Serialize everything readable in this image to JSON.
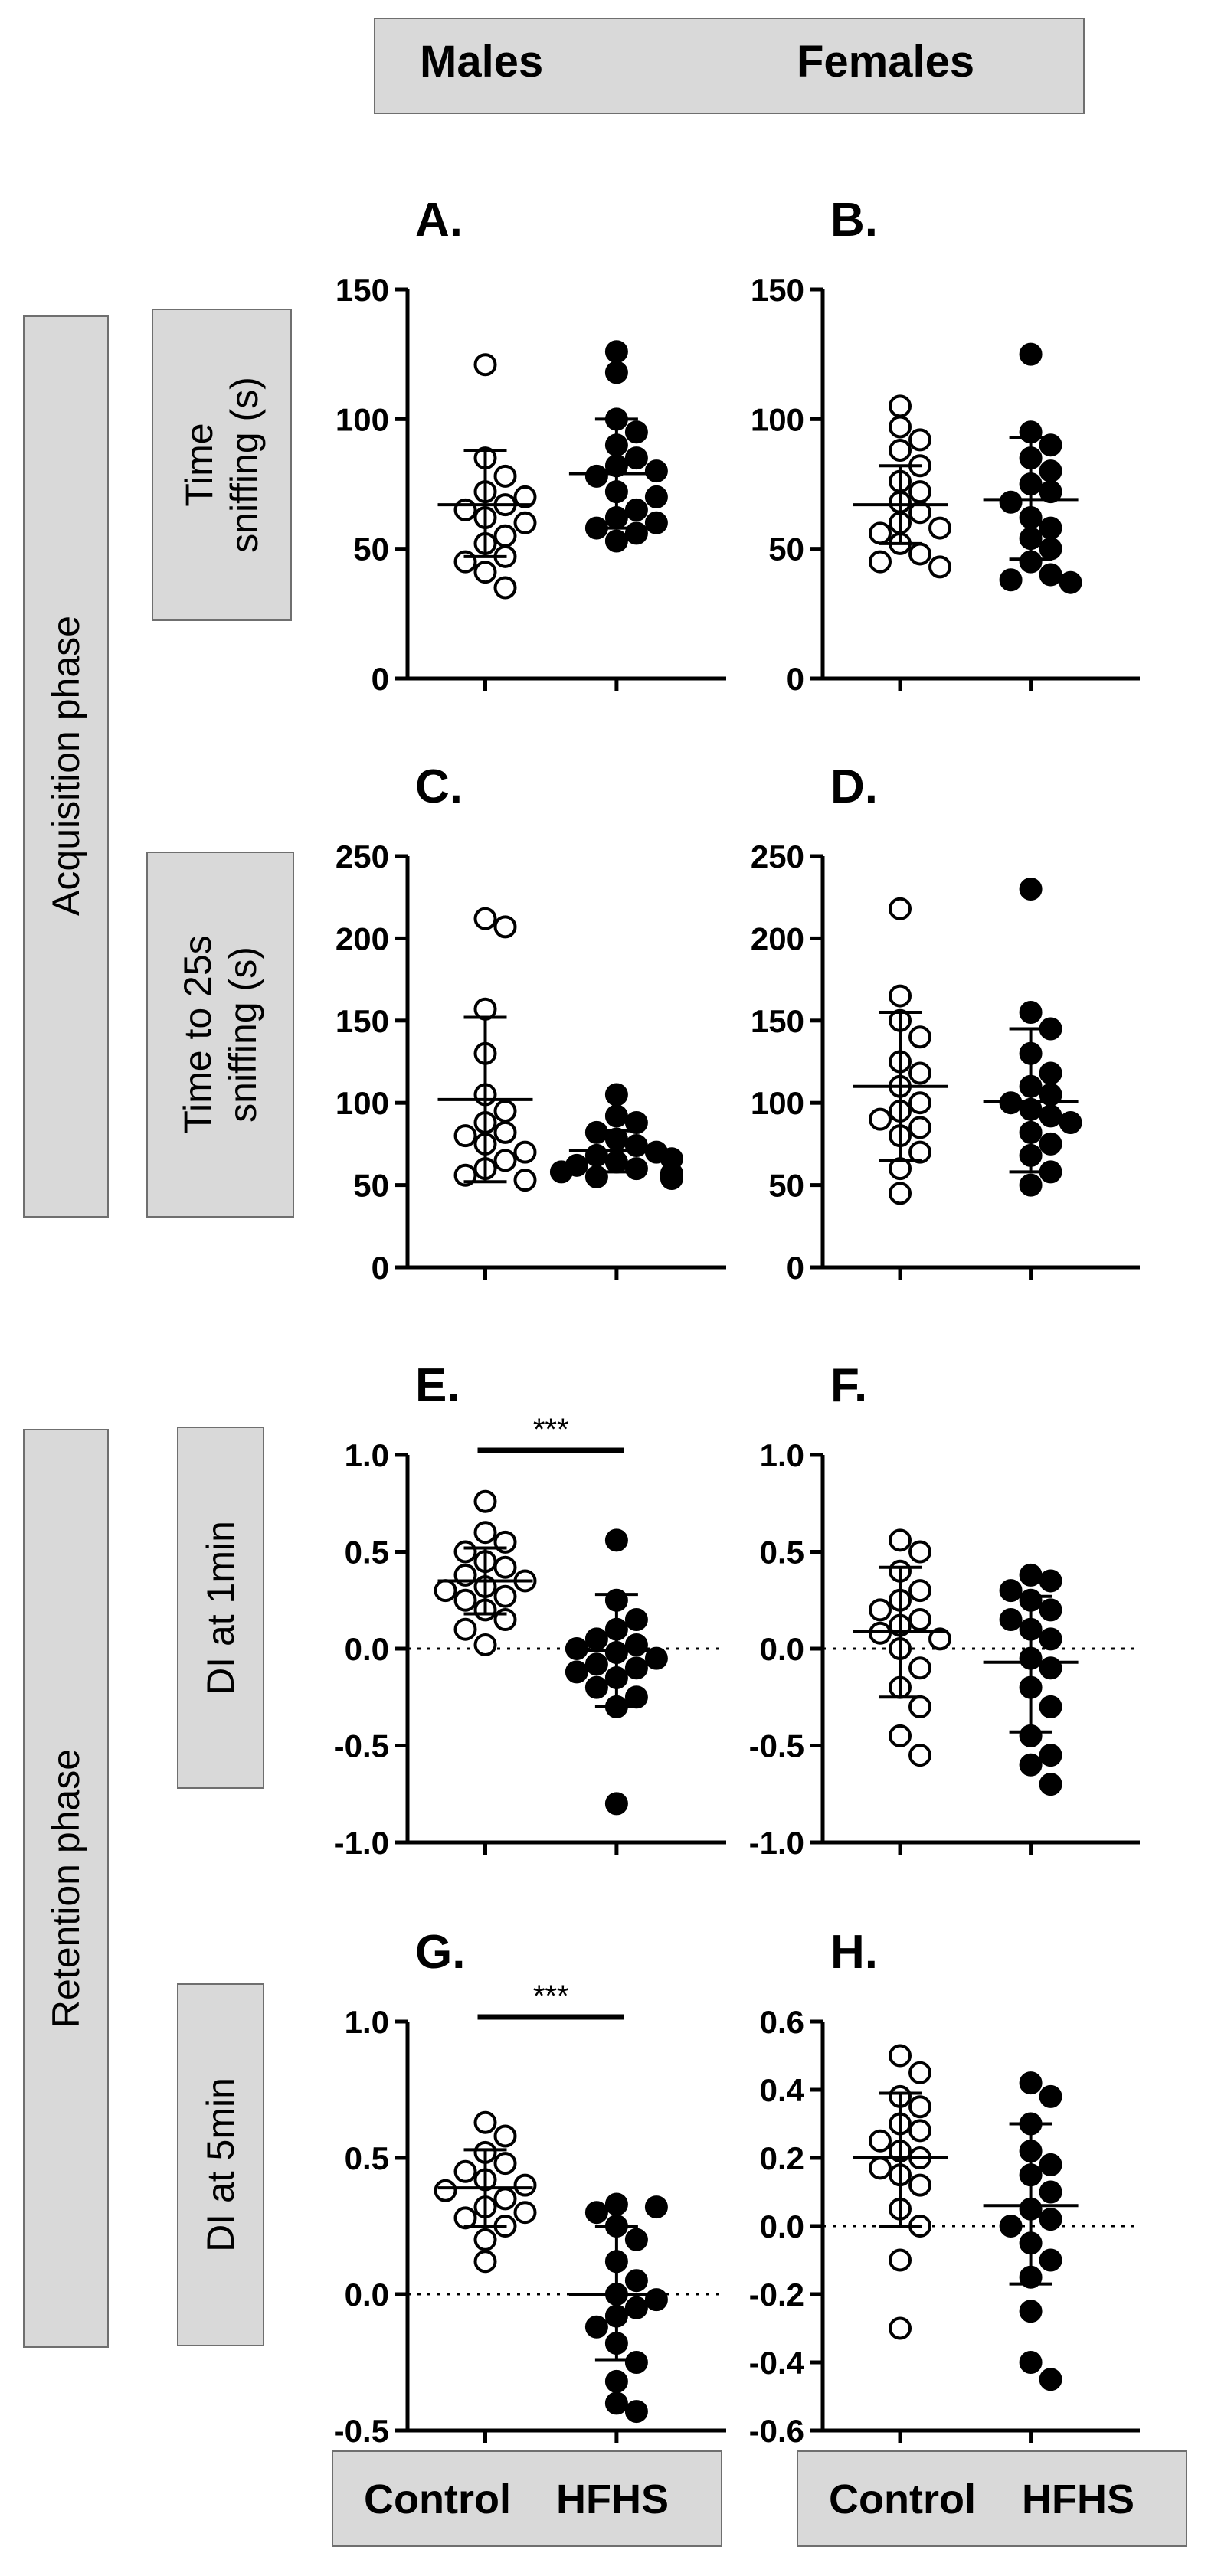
{
  "header": {
    "males": "Males",
    "females": "Females"
  },
  "phases": {
    "acquisition": "Acquisition phase",
    "retention": "Retention phase"
  },
  "row_labels": {
    "time_sniffing": [
      "Time",
      "sniffing (s)"
    ],
    "time_to_25s": [
      "Time to 25s",
      "sniffing (s)"
    ],
    "di_1min": "DI at 1min",
    "di_5min": "DI at 5min"
  },
  "footer": {
    "males": {
      "control": "Control",
      "hfhs": "HFHS"
    },
    "females": {
      "control": "Control",
      "hfhs": "HFHS"
    }
  },
  "colors": {
    "control_fill": "#ffffff",
    "hfhs_fill": "#000000",
    "box_fill": "#d9d9d9",
    "box_border": "#6f6f6f"
  },
  "chart_data": [
    {
      "id": "A",
      "title": "A.",
      "type": "scatter",
      "ylabel": "Time sniffing (s)",
      "categories": [
        "Control",
        "HFHS"
      ],
      "ylim": [
        0,
        150
      ],
      "yticks": [
        0,
        50,
        100,
        150
      ],
      "ytick_labels": [
        "0",
        "50",
        "100",
        "150"
      ],
      "zero_line": false,
      "series": [
        {
          "name": "Control",
          "values": [
            121,
            85,
            78,
            72,
            70,
            67,
            65,
            62,
            60,
            55,
            52,
            47,
            45,
            41,
            35
          ],
          "mean": 67,
          "sd_low": 47,
          "sd_high": 88
        },
        {
          "name": "HFHS",
          "values": [
            126,
            118,
            100,
            95,
            90,
            85,
            82,
            80,
            78,
            72,
            70,
            65,
            62,
            60,
            58,
            56,
            53
          ],
          "mean": 79,
          "sd_low": 58,
          "sd_high": 100
        }
      ],
      "significance": null
    },
    {
      "id": "B",
      "title": "B.",
      "type": "scatter",
      "ylabel": "Time sniffing (s)",
      "categories": [
        "Control",
        "HFHS"
      ],
      "ylim": [
        0,
        150
      ],
      "yticks": [
        0,
        50,
        100,
        150
      ],
      "ytick_labels": [
        "0",
        "50",
        "100",
        "150"
      ],
      "zero_line": false,
      "series": [
        {
          "name": "Control",
          "values": [
            105,
            97,
            92,
            88,
            82,
            76,
            72,
            68,
            64,
            60,
            58,
            56,
            52,
            48,
            45,
            43
          ],
          "mean": 67,
          "sd_low": 52,
          "sd_high": 82
        },
        {
          "name": "HFHS",
          "values": [
            125,
            95,
            90,
            85,
            80,
            75,
            72,
            68,
            62,
            58,
            54,
            50,
            45,
            40,
            38,
            37
          ],
          "mean": 69,
          "sd_low": 46,
          "sd_high": 93
        }
      ],
      "significance": null
    },
    {
      "id": "C",
      "title": "C.",
      "type": "scatter",
      "ylabel": "Time to 25s sniffing (s)",
      "categories": [
        "Control",
        "HFHS"
      ],
      "ylim": [
        0,
        250
      ],
      "yticks": [
        0,
        50,
        100,
        150,
        200,
        250
      ],
      "ytick_labels": [
        "0",
        "50",
        "100",
        "150",
        "200",
        "250"
      ],
      "zero_line": false,
      "series": [
        {
          "name": "Control",
          "values": [
            212,
            207,
            157,
            130,
            105,
            95,
            88,
            82,
            80,
            75,
            70,
            65,
            60,
            56,
            53
          ],
          "mean": 102,
          "sd_low": 52,
          "sd_high": 152
        },
        {
          "name": "HFHS",
          "values": [
            105,
            92,
            88,
            82,
            78,
            74,
            70,
            68,
            66,
            64,
            62,
            60,
            58,
            57,
            56,
            55,
            54
          ],
          "mean": 71,
          "sd_low": 58,
          "sd_high": 83
        }
      ],
      "significance": null
    },
    {
      "id": "D",
      "title": "D.",
      "type": "scatter",
      "ylabel": "Time to 25s sniffing (s)",
      "categories": [
        "Control",
        "HFHS"
      ],
      "ylim": [
        0,
        250
      ],
      "yticks": [
        0,
        50,
        100,
        150,
        200,
        250
      ],
      "ytick_labels": [
        "0",
        "50",
        "100",
        "150",
        "200",
        "250"
      ],
      "zero_line": false,
      "series": [
        {
          "name": "Control",
          "values": [
            218,
            165,
            150,
            140,
            125,
            118,
            110,
            100,
            95,
            90,
            85,
            80,
            70,
            60,
            45
          ],
          "mean": 110,
          "sd_low": 65,
          "sd_high": 155
        },
        {
          "name": "HFHS",
          "values": [
            230,
            155,
            145,
            130,
            118,
            110,
            105,
            100,
            96,
            92,
            88,
            82,
            75,
            68,
            58,
            50
          ],
          "mean": 101,
          "sd_low": 58,
          "sd_high": 145
        }
      ],
      "significance": null
    },
    {
      "id": "E",
      "title": "E.",
      "type": "scatter",
      "ylabel": "DI at 1min",
      "categories": [
        "Control",
        "HFHS"
      ],
      "ylim": [
        -1.0,
        1.0
      ],
      "yticks": [
        -1.0,
        -0.5,
        0.0,
        0.5,
        1.0
      ],
      "ytick_labels": [
        "-1.0",
        "-0.5",
        "0.0",
        "0.5",
        "1.0"
      ],
      "zero_line": true,
      "series": [
        {
          "name": "Control",
          "values": [
            0.76,
            0.6,
            0.55,
            0.5,
            0.45,
            0.42,
            0.38,
            0.35,
            0.32,
            0.3,
            0.27,
            0.25,
            0.2,
            0.15,
            0.1,
            0.02
          ],
          "mean": 0.35,
          "sd_low": 0.18,
          "sd_high": 0.52
        },
        {
          "name": "HFHS",
          "values": [
            0.56,
            0.25,
            0.15,
            0.1,
            0.05,
            0.02,
            0.0,
            -0.02,
            -0.05,
            -0.08,
            -0.1,
            -0.12,
            -0.15,
            -0.2,
            -0.25,
            -0.3,
            -0.8
          ],
          "mean": -0.01,
          "sd_low": -0.3,
          "sd_high": 0.28
        }
      ],
      "significance": "***"
    },
    {
      "id": "F",
      "title": "F.",
      "type": "scatter",
      "ylabel": "DI at 1min",
      "categories": [
        "Control",
        "HFHS"
      ],
      "ylim": [
        -1.0,
        1.0
      ],
      "yticks": [
        -1.0,
        -0.5,
        0.0,
        0.5,
        1.0
      ],
      "ytick_labels": [
        "-1.0",
        "-0.5",
        "0.0",
        "0.5",
        "1.0"
      ],
      "zero_line": true,
      "series": [
        {
          "name": "Control",
          "values": [
            0.56,
            0.5,
            0.4,
            0.3,
            0.25,
            0.2,
            0.15,
            0.12,
            0.08,
            0.05,
            0.0,
            -0.1,
            -0.2,
            -0.3,
            -0.45,
            -0.55
          ],
          "mean": 0.09,
          "sd_low": -0.25,
          "sd_high": 0.42
        },
        {
          "name": "HFHS",
          "values": [
            0.38,
            0.35,
            0.3,
            0.25,
            0.2,
            0.15,
            0.1,
            0.05,
            -0.05,
            -0.1,
            -0.2,
            -0.3,
            -0.45,
            -0.55,
            -0.6,
            -0.7
          ],
          "mean": -0.07,
          "sd_low": -0.43,
          "sd_high": 0.27
        }
      ],
      "significance": null
    },
    {
      "id": "G",
      "title": "G.",
      "type": "scatter",
      "ylabel": "DI at 5min",
      "categories": [
        "Control",
        "HFHS"
      ],
      "ylim": [
        -0.5,
        1.0
      ],
      "yticks": [
        -0.5,
        0.0,
        0.5,
        1.0
      ],
      "ytick_labels": [
        "-0.5",
        "0.0",
        "0.5",
        "1.0"
      ],
      "zero_line": true,
      "series": [
        {
          "name": "Control",
          "values": [
            0.63,
            0.58,
            0.52,
            0.48,
            0.45,
            0.42,
            0.4,
            0.38,
            0.35,
            0.32,
            0.3,
            0.28,
            0.25,
            0.2,
            0.12
          ],
          "mean": 0.39,
          "sd_low": 0.25,
          "sd_high": 0.53
        },
        {
          "name": "HFHS",
          "values": [
            0.33,
            0.32,
            0.3,
            0.25,
            0.2,
            0.12,
            0.05,
            0.0,
            -0.02,
            -0.05,
            -0.08,
            -0.12,
            -0.18,
            -0.25,
            -0.32,
            -0.4,
            -0.43
          ],
          "mean": 0.0,
          "sd_low": -0.24,
          "sd_high": 0.25
        }
      ],
      "significance": "***"
    },
    {
      "id": "H",
      "title": "H.",
      "type": "scatter",
      "ylabel": "DI at 5min",
      "categories": [
        "Control",
        "HFHS"
      ],
      "ylim": [
        -0.6,
        0.6
      ],
      "yticks": [
        -0.6,
        -0.4,
        -0.2,
        0.0,
        0.2,
        0.4,
        0.6
      ],
      "ytick_labels": [
        "-0.6",
        "-0.4",
        "-0.2",
        "0.0",
        "0.2",
        "0.4",
        "0.6"
      ],
      "zero_line": true,
      "series": [
        {
          "name": "Control",
          "values": [
            0.5,
            0.45,
            0.38,
            0.35,
            0.3,
            0.28,
            0.25,
            0.22,
            0.2,
            0.17,
            0.15,
            0.12,
            0.05,
            0.0,
            -0.1,
            -0.3
          ],
          "mean": 0.2,
          "sd_low": 0.0,
          "sd_high": 0.39
        },
        {
          "name": "HFHS",
          "values": [
            0.42,
            0.38,
            0.3,
            0.22,
            0.18,
            0.15,
            0.1,
            0.05,
            0.02,
            0.0,
            -0.05,
            -0.1,
            -0.15,
            -0.25,
            -0.4,
            -0.45
          ],
          "mean": 0.06,
          "sd_low": -0.17,
          "sd_high": 0.3
        }
      ],
      "significance": null
    }
  ]
}
